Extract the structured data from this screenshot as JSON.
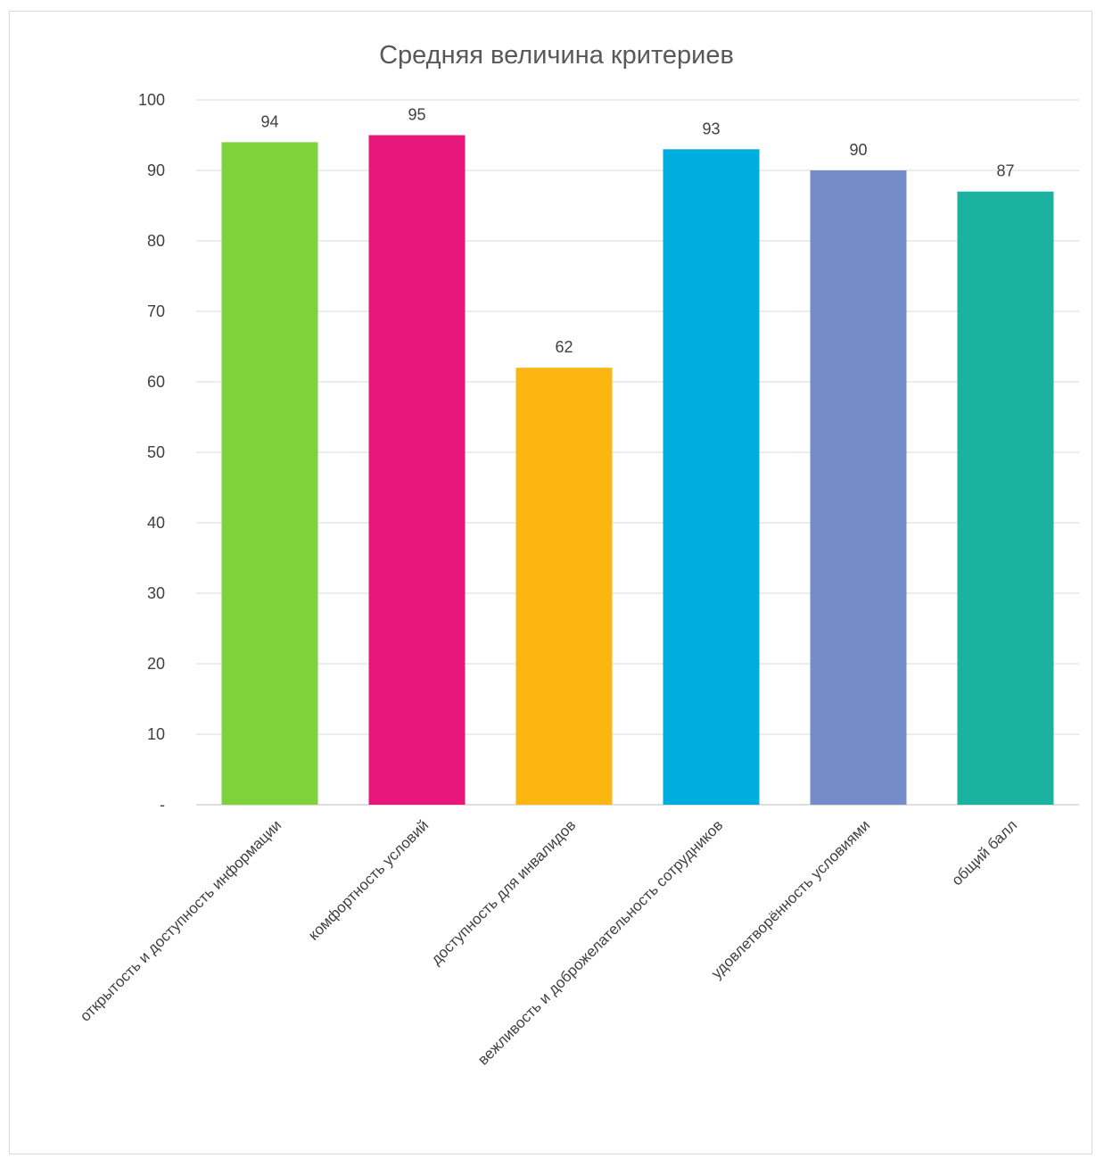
{
  "chart_data": {
    "type": "bar",
    "title": "Средняя величина критериев",
    "categories": [
      "открытость и доступность информации",
      "комфортность условий",
      "доступность для инвалидов",
      "вежливость и доброжелательность сотрудников",
      "удовлетворённость условиями",
      "общий балл"
    ],
    "values": [
      94,
      95,
      62,
      93,
      90,
      87
    ],
    "colors": [
      "#7ed23b",
      "#e8177c",
      "#fcb612",
      "#00aedd",
      "#748cc7",
      "#1bb39f"
    ],
    "ylim": [
      0,
      100
    ],
    "yticks": [
      0,
      10,
      20,
      30,
      40,
      50,
      60,
      70,
      80,
      90,
      100
    ],
    "ytick_labels": [
      "-",
      "10",
      "20",
      "30",
      "40",
      "50",
      "60",
      "70",
      "80",
      "90",
      "100"
    ],
    "grid": true,
    "legend": "none",
    "xlabel": "",
    "ylabel": ""
  }
}
